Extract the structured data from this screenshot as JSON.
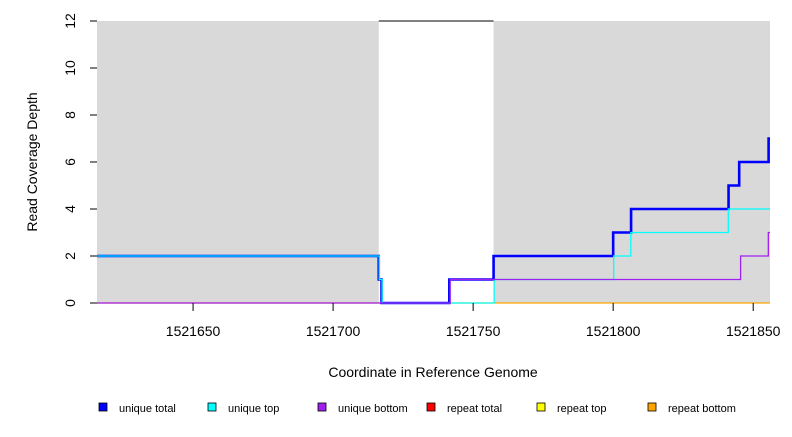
{
  "chart_data": {
    "type": "line",
    "step": true,
    "title": "",
    "xlabel": "Coordinate in Reference Genome",
    "ylabel": "Read Coverage Depth",
    "xlim": [
      1521615.7,
      1521856
    ],
    "ylim": [
      0,
      12
    ],
    "xticks": [
      1521650,
      1521700,
      1521750,
      1521800,
      1521850
    ],
    "yticks": [
      0,
      2,
      4,
      6,
      8,
      10,
      12
    ],
    "grid": false,
    "shaded_regions": [
      {
        "x0": 1521615.7,
        "x1": 1521716.3,
        "color": "#d9d9d9"
      },
      {
        "x0": 1521757.3,
        "x1": 1521856,
        "color": "#d9d9d9"
      }
    ],
    "unshaded_top_line": {
      "x0": 1521716.3,
      "x1": 1521757.3,
      "y": 12
    },
    "legend_position": "bottom",
    "series": [
      {
        "name": "repeat total",
        "color": "#ff0000",
        "width": 1,
        "x": [
          1521615.7,
          1521856
        ],
        "y": [
          0,
          0
        ]
      },
      {
        "name": "repeat top",
        "color": "#ffff00",
        "width": 1,
        "x": [
          1521615.7,
          1521856
        ],
        "y": [
          0,
          0
        ]
      },
      {
        "name": "repeat bottom",
        "color": "#ffa500",
        "width": 1.3,
        "x": [
          1521615.7,
          1521856
        ],
        "y": [
          0,
          0
        ]
      },
      {
        "name": "unique total",
        "color": "#0000ff",
        "width": 2.6,
        "x": [
          1521615.7,
          1521716.3,
          1521717.3,
          1521741.5,
          1521757.3,
          1521800,
          1521806.4,
          1521841.2,
          1521845,
          1521855.5,
          1521856
        ],
        "y": [
          2,
          1,
          0,
          1,
          2,
          3,
          4,
          5,
          6,
          7,
          7
        ]
      },
      {
        "name": "unique top",
        "color": "#00ffff",
        "width": 1.3,
        "x": [
          1521615.7,
          1521716.5,
          1521717.5,
          1521757.5,
          1521800.2,
          1521806.3,
          1521841.1,
          1521856
        ],
        "y": [
          2,
          1,
          0,
          1,
          2,
          3,
          4,
          4
        ]
      },
      {
        "name": "unique bottom",
        "color": "#a020f0",
        "width": 1.3,
        "x": [
          1521615.7,
          1521741.8,
          1521845.5,
          1521855.4,
          1521856
        ],
        "y": [
          0,
          1,
          2,
          3,
          3
        ]
      }
    ],
    "legend": [
      {
        "label": "unique total",
        "color": "#0000ff"
      },
      {
        "label": "unique top",
        "color": "#00ffff"
      },
      {
        "label": "unique bottom",
        "color": "#a020f0"
      },
      {
        "label": "repeat total",
        "color": "#ff0000"
      },
      {
        "label": "repeat top",
        "color": "#ffff00"
      },
      {
        "label": "repeat bottom",
        "color": "#ffa500"
      }
    ]
  }
}
